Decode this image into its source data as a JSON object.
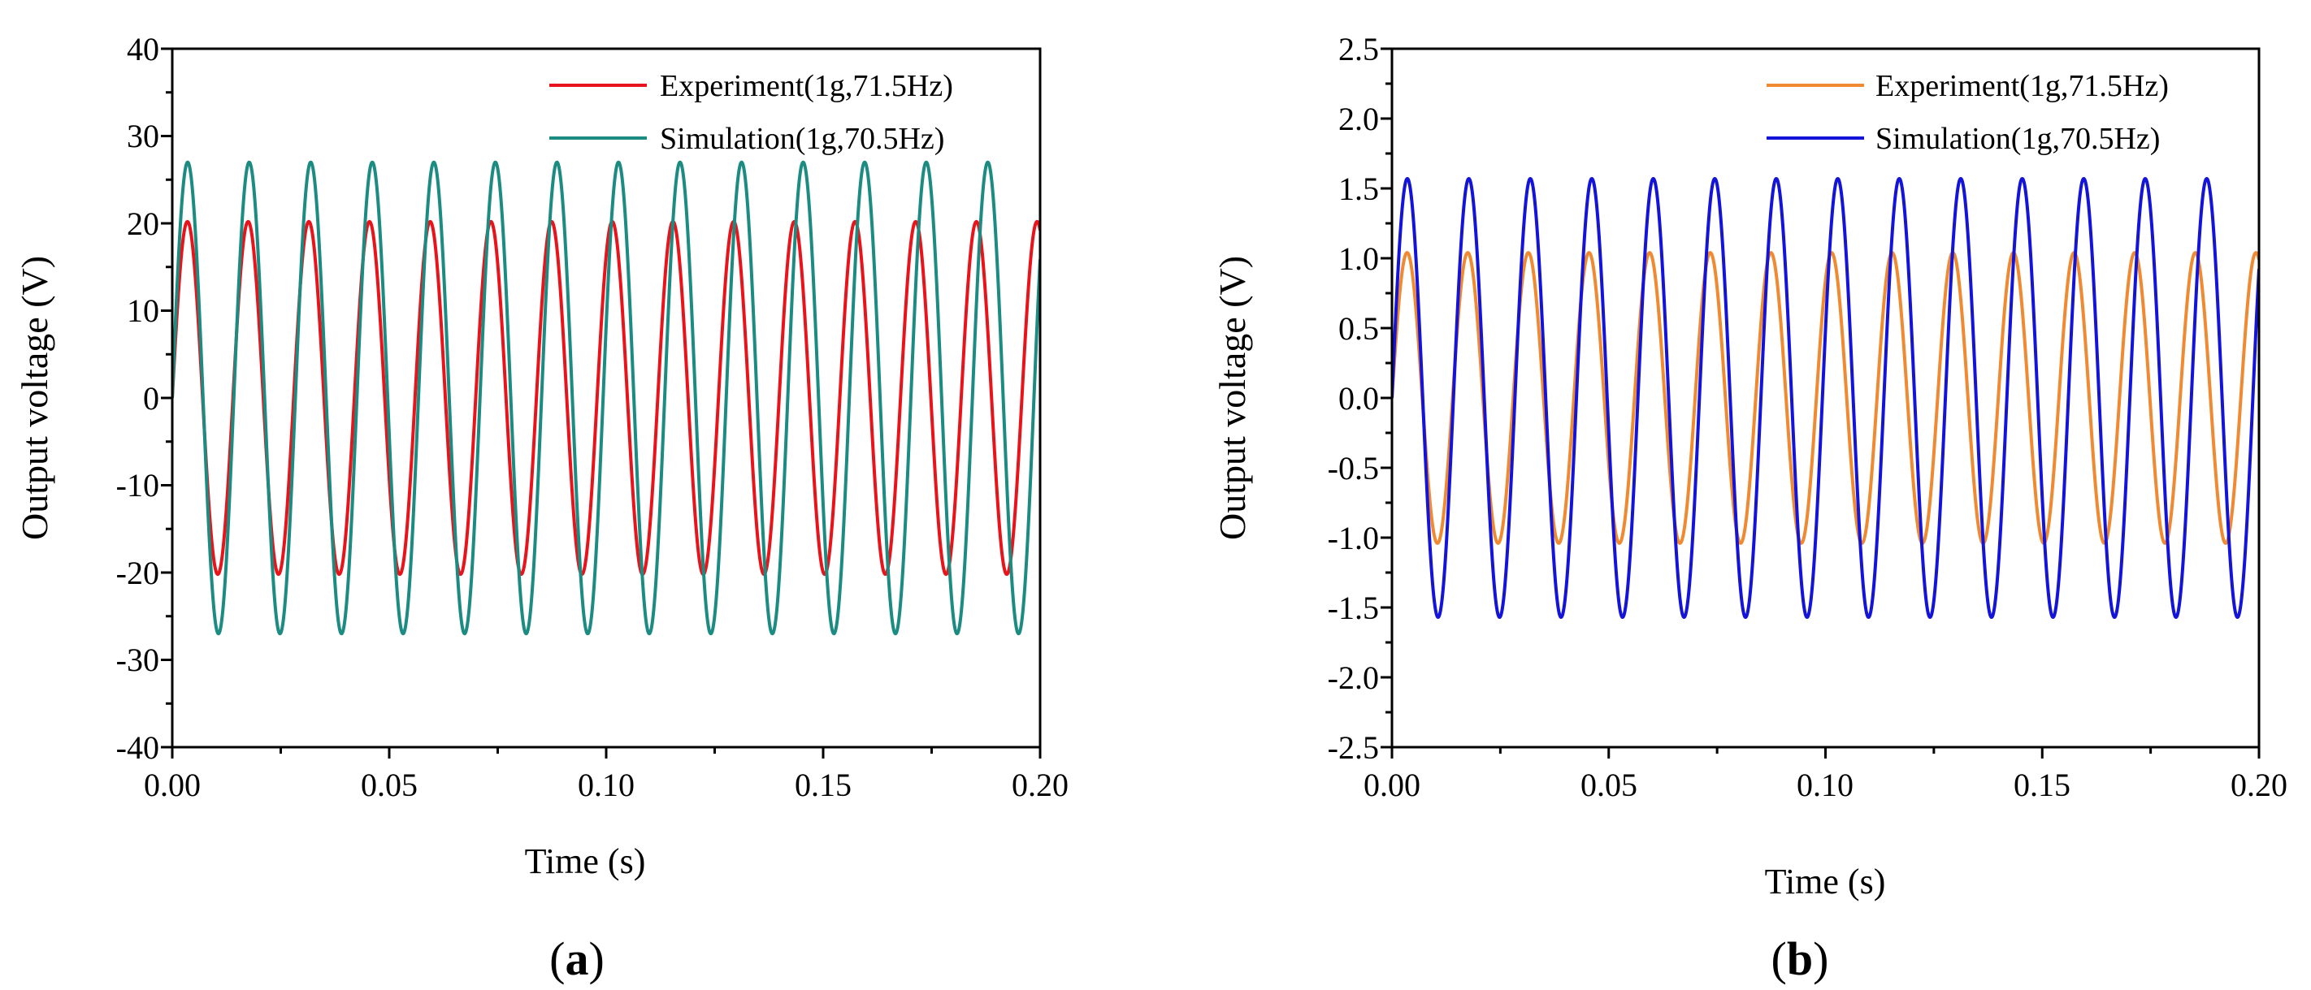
{
  "chart_data": [
    {
      "type": "line",
      "panel_label": "a",
      "xlabel": "Time (s)",
      "ylabel": "Output voltage (V)",
      "xlim": [
        0,
        0.2
      ],
      "ylim": [
        -40,
        40
      ],
      "x_ticks": [
        0,
        0.05,
        0.1,
        0.15,
        0.2
      ],
      "x_tick_labels": [
        "0.00",
        "0.05",
        "0.10",
        "0.15",
        "0.20"
      ],
      "y_ticks": [
        40,
        30,
        20,
        10,
        0,
        -10,
        -20,
        -30,
        -40
      ],
      "y_tick_labels": [
        "40",
        "30",
        "20",
        "10",
        "0",
        "-10",
        "-20",
        "-30",
        "-40"
      ],
      "legend_position": "top-right",
      "series": [
        {
          "name": "Experiment(1g,71.5Hz)",
          "label_color": "#e8141c",
          "line_color": "#e8141c",
          "frequency_hz": 71.5,
          "amplitude": 20.2,
          "phase_rad": 0
        },
        {
          "name": "Simulation(1g,70.5Hz)",
          "label_color": "#1c8c82",
          "line_color": "#1c8c82",
          "frequency_hz": 70.5,
          "amplitude": 27.0,
          "phase_rad": 0
        }
      ]
    },
    {
      "type": "line",
      "panel_label": "b",
      "xlabel": "Time (s)",
      "ylabel": "Output voltage (V)",
      "xlim": [
        0,
        0.2
      ],
      "ylim": [
        -2.5,
        2.5
      ],
      "x_ticks": [
        0,
        0.05,
        0.1,
        0.15,
        0.2
      ],
      "x_tick_labels": [
        "0.00",
        "0.05",
        "0.10",
        "0.15",
        "0.20"
      ],
      "y_ticks": [
        2.5,
        2.0,
        1.5,
        1.0,
        0.5,
        0,
        -0.5,
        -1.0,
        -1.5,
        -2.0,
        -2.5
      ],
      "y_tick_labels": [
        "2.5",
        "2.0",
        "1.5",
        "1.0",
        "0.5",
        "0.0",
        "-0.5",
        "-1.0",
        "-1.5",
        "-2.0",
        "-2.5"
      ],
      "legend_position": "top-right",
      "series": [
        {
          "name": "Experiment(1g,71.5Hz)",
          "label_color": "#ef8a33",
          "line_color": "#ef8a33",
          "frequency_hz": 71.5,
          "amplitude": 1.04,
          "phase_rad": 0
        },
        {
          "name": "Simulation(1g,70.5Hz)",
          "label_color": "#1c1cf0",
          "line_color": "#1414d8",
          "frequency_hz": 70.5,
          "amplitude": 1.57,
          "phase_rad": 0
        }
      ]
    }
  ]
}
